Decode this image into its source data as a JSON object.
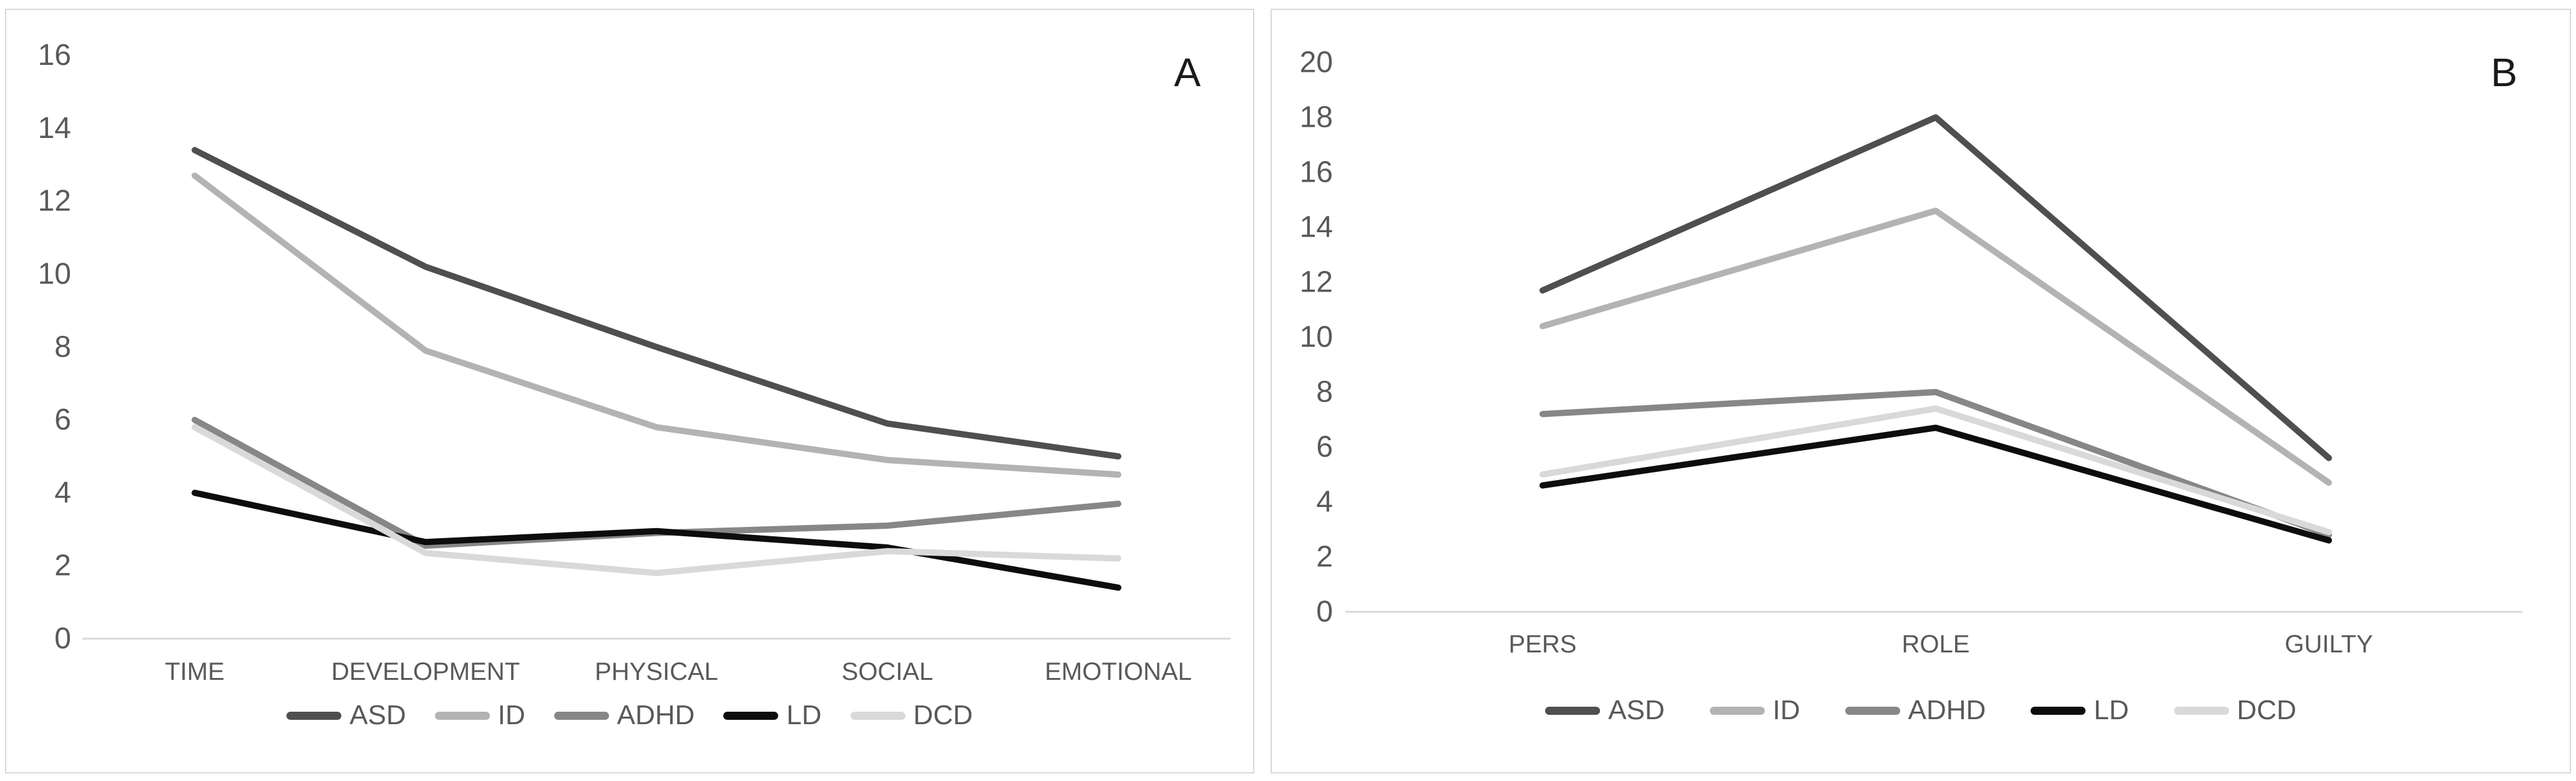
{
  "figure": {
    "background": "#ffffff",
    "panel_border_color": "#d9d9d9",
    "axis_color": "#d9d9d9",
    "text_color": "#595959",
    "panel_label_color": "#1a1a1a"
  },
  "chart_data": [
    {
      "type": "line",
      "panel_label": "A",
      "categories": [
        "TIME",
        "DEVELOPMENT",
        "PHYSICAL",
        "SOCIAL",
        "EMOTIONAL"
      ],
      "series": [
        {
          "name": "ASD",
          "color": "#4f4f4f",
          "values": [
            13.4,
            10.2,
            8.0,
            5.9,
            5.0
          ]
        },
        {
          "name": "ID",
          "color": "#b3b3b3",
          "values": [
            12.7,
            7.9,
            5.8,
            4.9,
            4.5
          ]
        },
        {
          "name": "ADHD",
          "color": "#878787",
          "values": [
            6.0,
            2.55,
            2.9,
            3.1,
            3.7
          ]
        },
        {
          "name": "LD",
          "color": "#0d0d0d",
          "values": [
            4.0,
            2.65,
            2.95,
            2.5,
            1.4
          ]
        },
        {
          "name": "DCD",
          "color": "#d9d9d9",
          "values": [
            5.8,
            2.35,
            1.8,
            2.4,
            2.2
          ]
        }
      ],
      "ylim": [
        0,
        16
      ],
      "ytick_step": 2,
      "grid": false,
      "legend_position": "bottom"
    },
    {
      "type": "line",
      "panel_label": "B",
      "categories": [
        "PERS",
        "ROLE",
        "GUILTY"
      ],
      "series": [
        {
          "name": "ASD",
          "color": "#4f4f4f",
          "values": [
            11.7,
            18.0,
            5.6
          ]
        },
        {
          "name": "ID",
          "color": "#b3b3b3",
          "values": [
            10.4,
            14.6,
            4.7
          ]
        },
        {
          "name": "ADHD",
          "color": "#878787",
          "values": [
            7.2,
            8.0,
            2.8
          ]
        },
        {
          "name": "LD",
          "color": "#0d0d0d",
          "values": [
            4.6,
            6.7,
            2.6
          ]
        },
        {
          "name": "DCD",
          "color": "#d9d9d9",
          "values": [
            5.0,
            7.4,
            2.9
          ]
        }
      ],
      "ylim": [
        0,
        20
      ],
      "ytick_step": 2,
      "grid": false,
      "legend_position": "bottom"
    }
  ]
}
